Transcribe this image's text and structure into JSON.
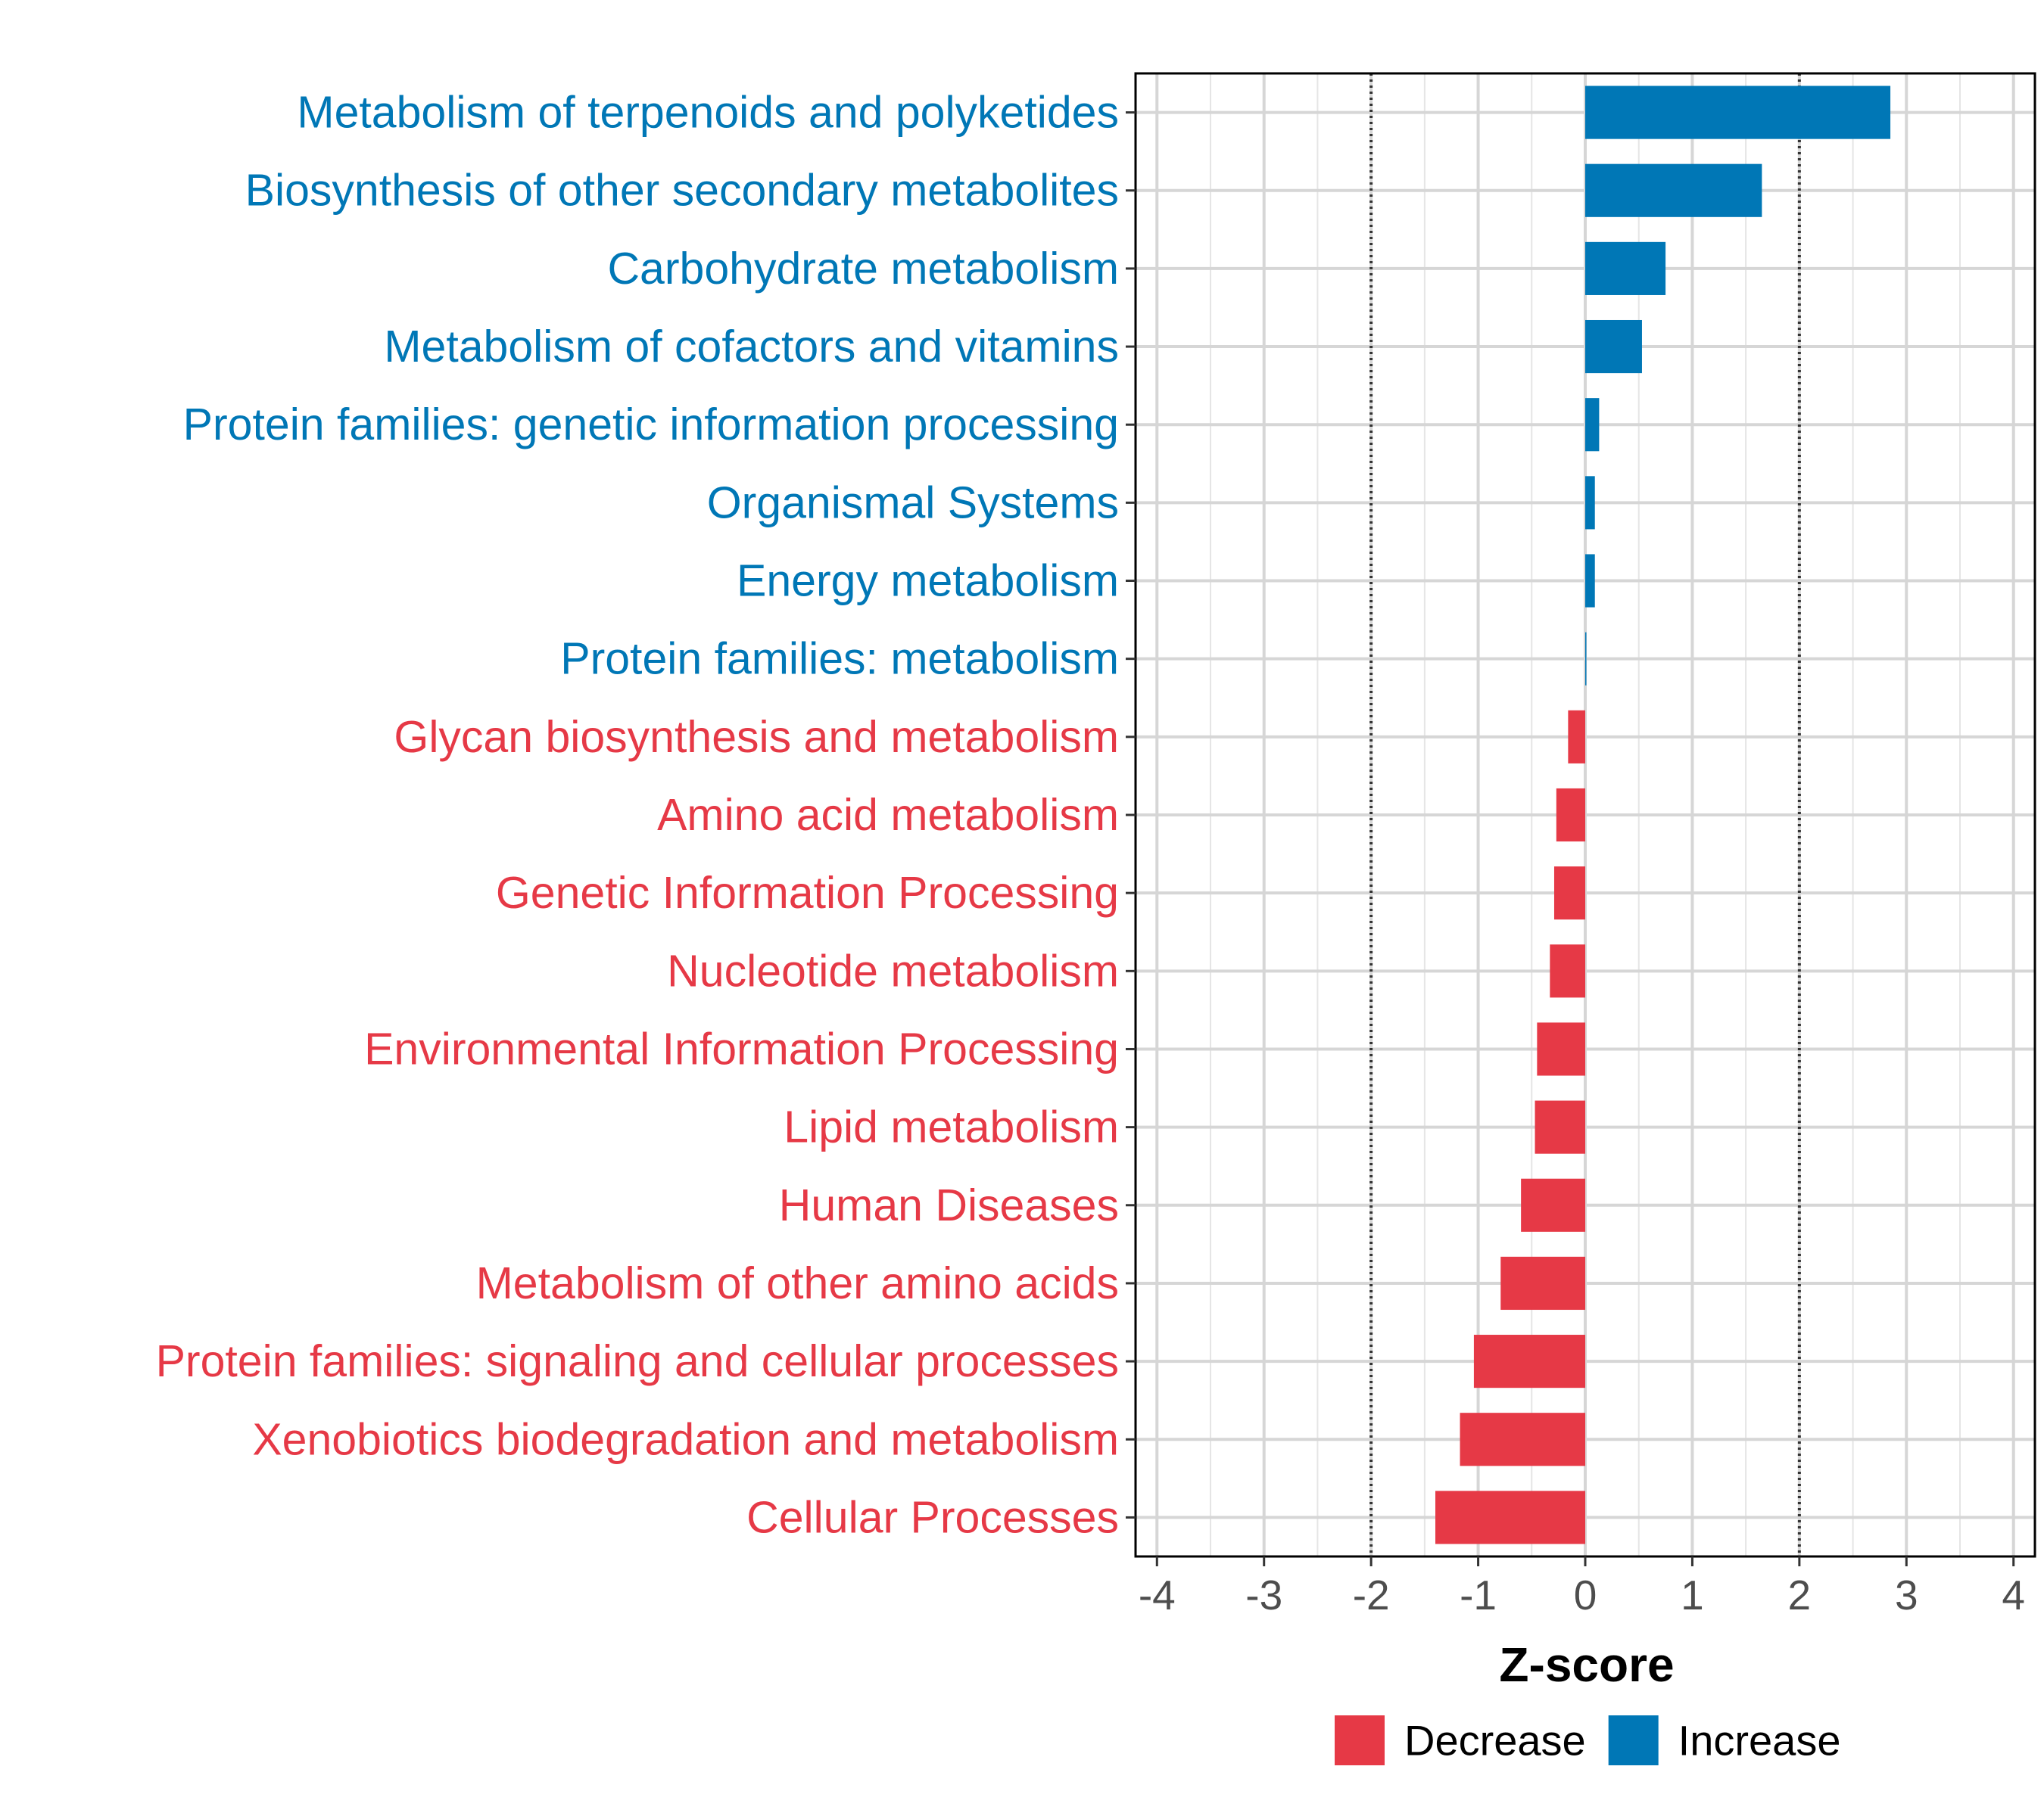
{
  "chart_data": {
    "type": "bar",
    "orientation": "horizontal",
    "title": "",
    "xlabel": "Z-score",
    "ylabel": "",
    "xlim": [
      -4.2,
      4.2
    ],
    "xticks": [
      -4,
      -3,
      -2,
      -1,
      0,
      1,
      2,
      3,
      4
    ],
    "xtick_labels": [
      "-4",
      "-3",
      "-2",
      "-1",
      "0",
      "1",
      "2",
      "3",
      "4"
    ],
    "reference_lines": [
      -2,
      2
    ],
    "grid": true,
    "categories": [
      "Metabolism of terpenoids and polyketides",
      "Biosynthesis of other secondary metabolites",
      "Carbohydrate metabolism",
      "Metabolism of cofactors and vitamins",
      "Protein families: genetic information processing",
      "Organismal Systems",
      "Energy metabolism",
      "Protein families: metabolism",
      "Glycan biosynthesis and metabolism",
      "Amino acid metabolism",
      "Genetic Information Processing",
      "Nucleotide metabolism",
      "Environmental Information Processing",
      "Lipid metabolism",
      "Human Diseases",
      "Metabolism of other amino acids",
      "Protein families: signaling and cellular processes",
      "Xenobiotics biodegradation and metabolism",
      "Cellular Processes"
    ],
    "values": [
      2.85,
      1.65,
      0.75,
      0.53,
      0.13,
      0.09,
      0.09,
      0.01,
      -0.16,
      -0.27,
      -0.29,
      -0.33,
      -0.45,
      -0.47,
      -0.6,
      -0.79,
      -1.04,
      -1.17,
      -1.4
    ],
    "groups": [
      "Increase",
      "Increase",
      "Increase",
      "Increase",
      "Increase",
      "Increase",
      "Increase",
      "Increase",
      "Decrease",
      "Decrease",
      "Decrease",
      "Decrease",
      "Decrease",
      "Decrease",
      "Decrease",
      "Decrease",
      "Decrease",
      "Decrease",
      "Decrease"
    ],
    "legend": {
      "position": "bottom",
      "entries": [
        {
          "name": "Decrease",
          "color": "#E63946"
        },
        {
          "name": "Increase",
          "color": "#0077B6"
        }
      ]
    }
  }
}
